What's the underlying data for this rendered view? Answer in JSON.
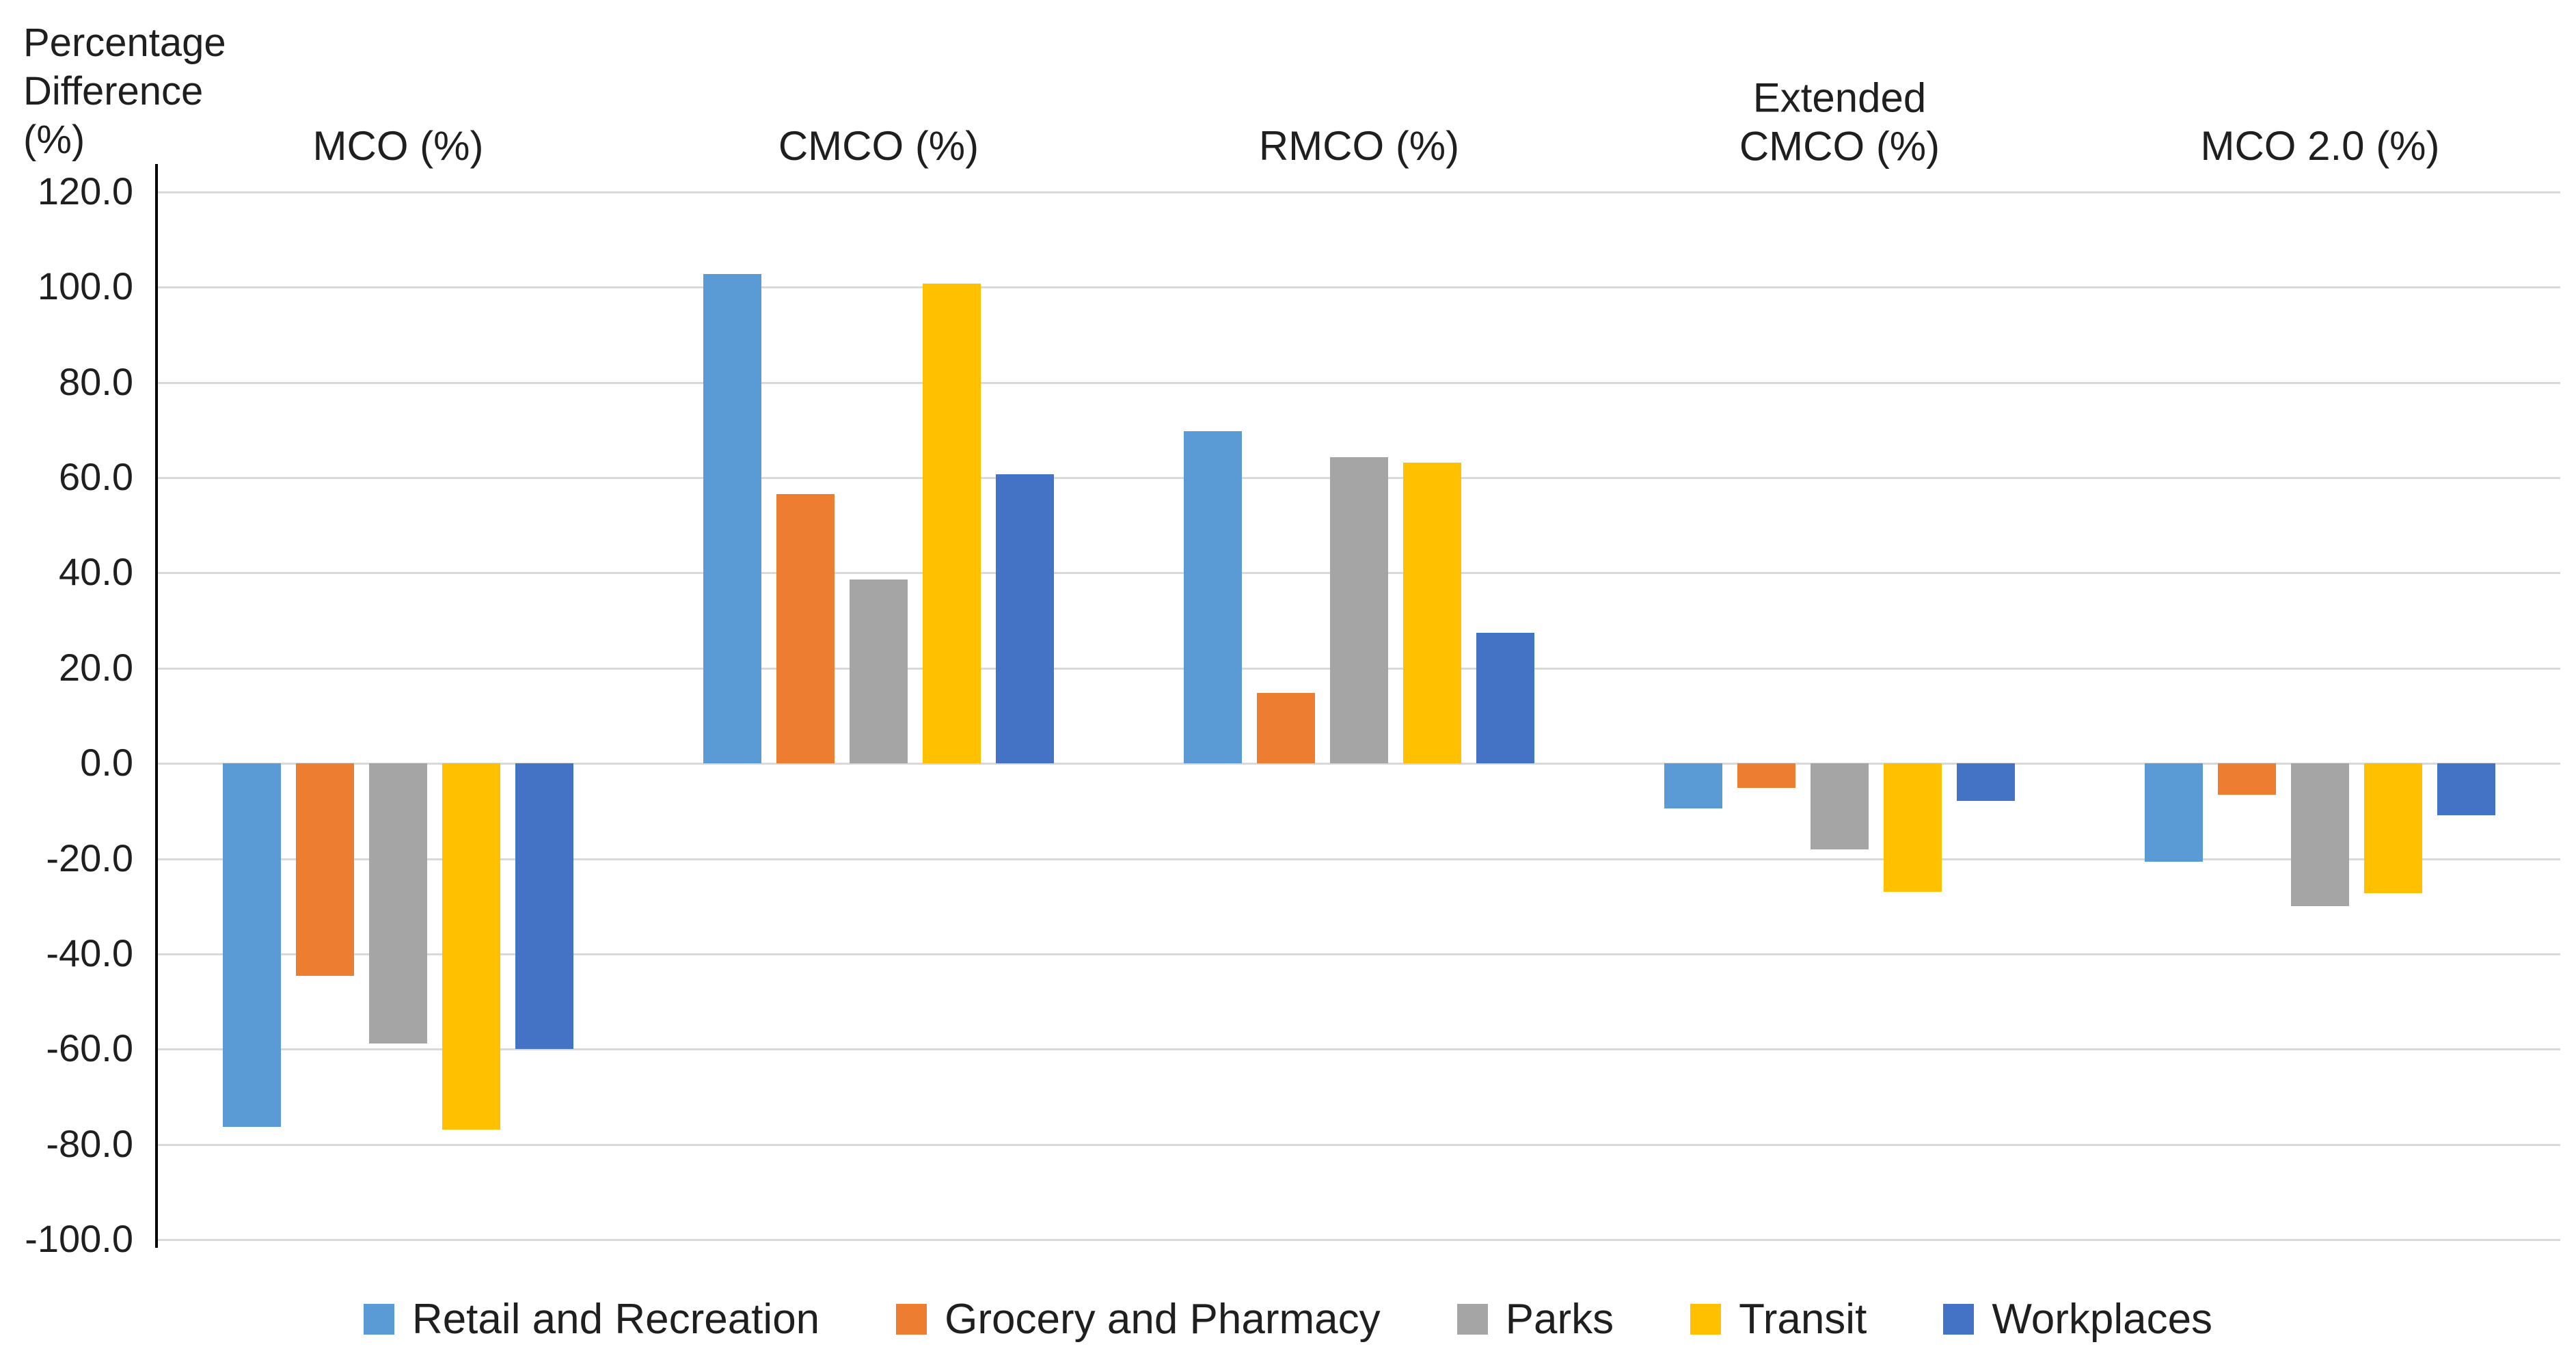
{
  "chart_data": {
    "type": "bar",
    "title": "",
    "y_axis_title": "Percentage\nDifference\n(%)",
    "categories": [
      "MCO (%)",
      "CMCO (%)",
      "RMCO (%)",
      "Extended\nCMCO (%)",
      "MCO 2.0 (%)"
    ],
    "series": [
      {
        "name": "Retail and Recreation",
        "color": "#5B9BD5",
        "values": [
          -76.3,
          102.8,
          69.8,
          -9.5,
          -20.7
        ]
      },
      {
        "name": "Grocery and Pharmacy",
        "color": "#ED7D31",
        "values": [
          -44.6,
          56.6,
          14.8,
          -5.1,
          -6.6
        ]
      },
      {
        "name": "Parks",
        "color": "#A5A5A5",
        "values": [
          -58.8,
          38.7,
          64.3,
          -18.1,
          -29.9
        ]
      },
      {
        "name": "Transit",
        "color": "#FFC000",
        "values": [
          -76.9,
          100.7,
          63.2,
          -26.9,
          -27.2
        ]
      },
      {
        "name": "Workplaces",
        "color": "#4472C4",
        "values": [
          -60.0,
          60.8,
          27.4,
          -7.8,
          -10.9
        ]
      }
    ],
    "y_axis": {
      "min": -100,
      "max": 120,
      "step": 20,
      "ticks": [
        "120.0",
        "100.0",
        "80.0",
        "60.0",
        "40.0",
        "20.0",
        "0.0",
        "-20.0",
        "-40.0",
        "-60.0",
        "-80.0",
        "-100.0"
      ]
    },
    "grid": true,
    "legend_position": "bottom",
    "colors": {
      "gridline": "#D9D9D9",
      "axis_line": "#000000",
      "text": "#1F1F1F",
      "background": "#FFFFFF"
    }
  }
}
